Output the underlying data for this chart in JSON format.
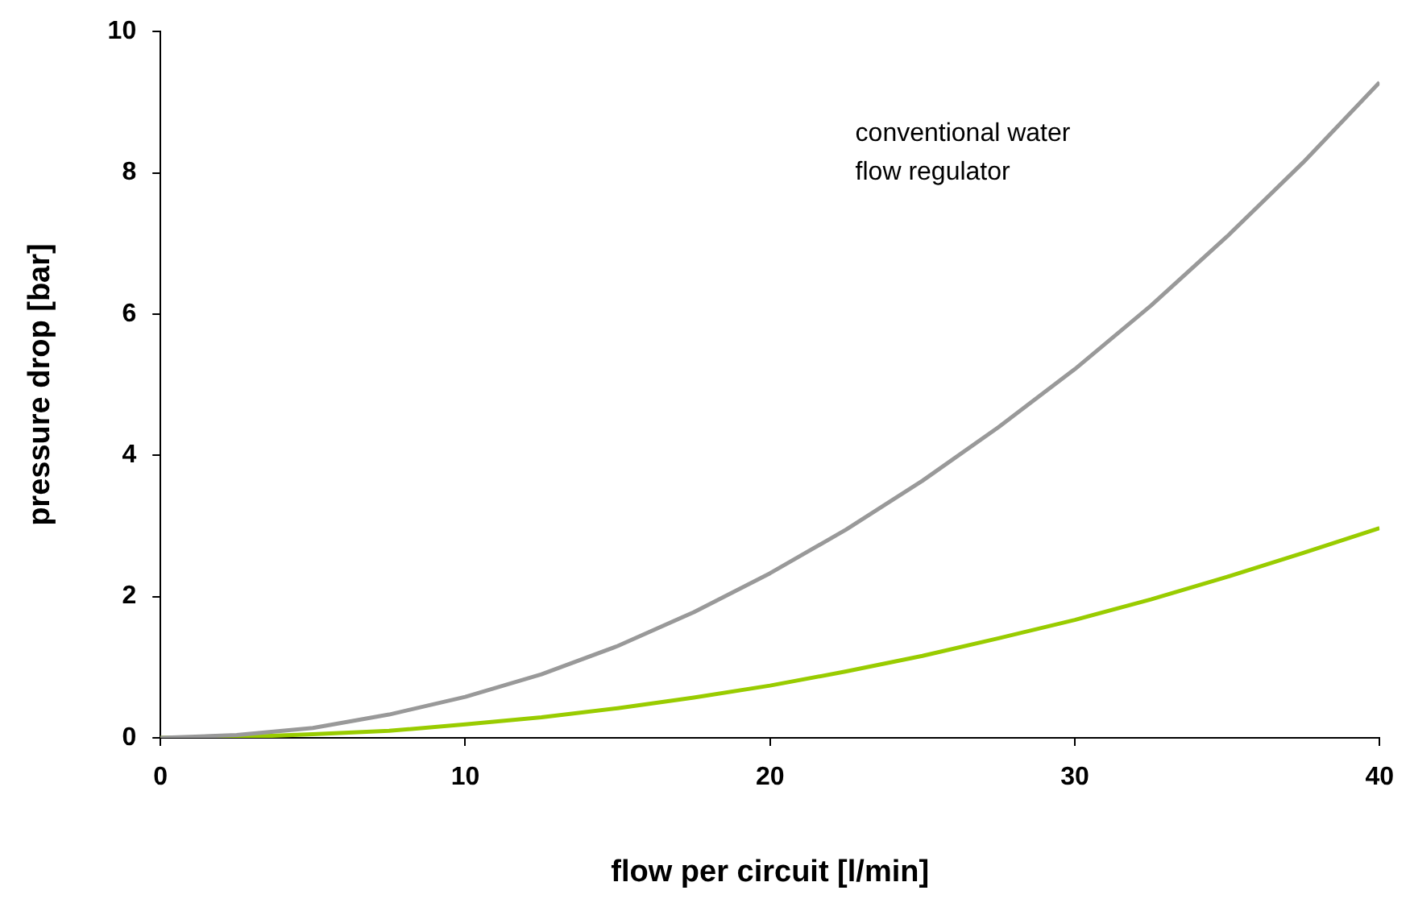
{
  "chart_data": {
    "type": "line",
    "xlabel": "flow per circuit [l/min]",
    "ylabel": "pressure drop [bar]",
    "xlim": [
      0,
      40
    ],
    "xticks": [
      0,
      10,
      20,
      30,
      40
    ],
    "ylim": [
      0,
      10
    ],
    "yticks": [
      0,
      2,
      4,
      6,
      8,
      10
    ],
    "grid": false,
    "legend": false,
    "marker": "none",
    "line_style": "solid",
    "x": [
      0,
      2.5,
      5,
      7.5,
      10,
      12.5,
      15,
      17.5,
      20,
      22.5,
      25,
      27.5,
      30,
      32.5,
      35,
      37.5,
      40
    ],
    "series": [
      {
        "name": "conventional water flow regulator",
        "color": "#999999",
        "values": [
          0,
          0.04,
          0.14,
          0.33,
          0.58,
          0.9,
          1.3,
          1.78,
          2.33,
          2.95,
          3.64,
          4.4,
          5.22,
          6.12,
          7.1,
          8.15,
          9.28
        ]
      },
      {
        "color": "#99cc00",
        "values": [
          0,
          0.01,
          0.05,
          0.1,
          0.19,
          0.29,
          0.42,
          0.57,
          0.74,
          0.94,
          1.16,
          1.41,
          1.67,
          1.96,
          2.28,
          2.62,
          2.97
        ]
      }
    ]
  }
}
